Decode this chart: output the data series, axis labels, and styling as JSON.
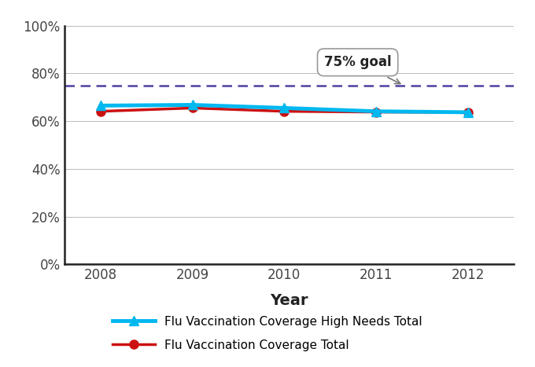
{
  "years": [
    2008,
    2009,
    2010,
    2011,
    2012
  ],
  "high_needs": [
    0.665,
    0.668,
    0.655,
    0.641,
    0.637
  ],
  "total": [
    0.641,
    0.655,
    0.641,
    0.638,
    0.637
  ],
  "goal": 0.75,
  "goal_label": "75% goal",
  "high_needs_label": "Flu Vaccination Coverage High Needs Total",
  "total_label": "Flu Vaccination Coverage Total",
  "xlabel": "Year",
  "high_needs_color": "#00b8f0",
  "total_color": "#cc1111",
  "goal_color": "#5040a0",
  "ylim_min": 0.0,
  "ylim_max": 1.0,
  "yticks": [
    0.0,
    0.2,
    0.4,
    0.6,
    0.8,
    1.0
  ],
  "ytick_labels": [
    "0%",
    "20%",
    "40%",
    "60%",
    "80%",
    "100%"
  ],
  "bg_color": "#ffffff",
  "grid_color": "#bbbbbb",
  "spine_color": "#222222"
}
